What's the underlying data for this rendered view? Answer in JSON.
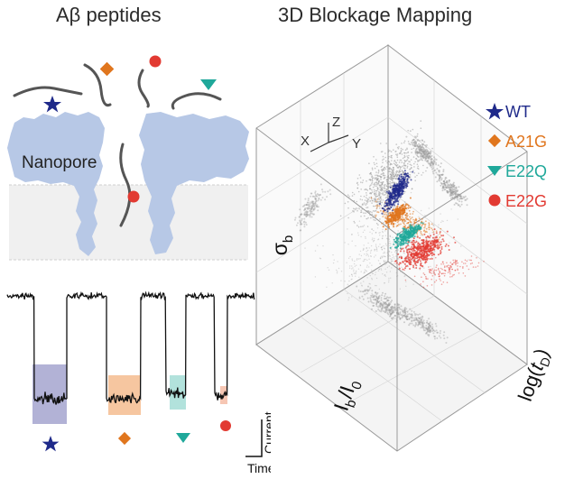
{
  "left_panel": {
    "title": "Aβ peptides",
    "nanopore_label": "Nanopore"
  },
  "trace_panel": {
    "y_label": "Current",
    "x_label": "Time"
  },
  "right_panel": {
    "title": "3D Blockage Mapping",
    "axes": {
      "x_tag": "X",
      "y_tag": "Y",
      "z_tag": "Z",
      "z_label_main": "σ",
      "z_label_sub": "b",
      "ratio_main_1": "I",
      "ratio_sub_1": "b",
      "ratio_sep": "/I",
      "ratio_sub_2": "0",
      "log_prefix": "log(",
      "log_var": "t",
      "log_sub": "D",
      "log_suffix": ")"
    },
    "legend": [
      {
        "label": "WT",
        "symbol": "star",
        "color": "#1f2a8a"
      },
      {
        "label": "A21G",
        "symbol": "diamond",
        "color": "#e0761e"
      },
      {
        "label": "E22Q",
        "symbol": "triangle-down",
        "color": "#1fa89a"
      },
      {
        "label": "E22G",
        "symbol": "circle",
        "color": "#e23a32"
      }
    ]
  },
  "colors": {
    "pore": "#b7c8e6",
    "membrane": "#f0f0f0",
    "trace": "#111111",
    "wt": "#1f2a8a",
    "a21g": "#e0761e",
    "e22q": "#1fa89a",
    "e22g": "#e23a32"
  }
}
